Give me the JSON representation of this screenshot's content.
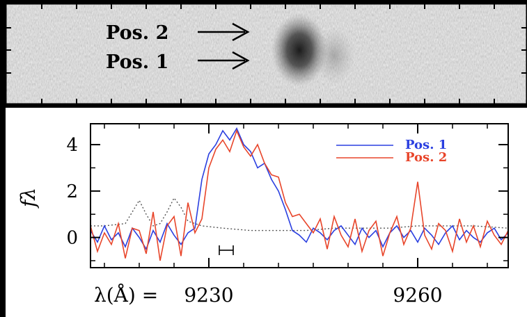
{
  "image_panel": {
    "labels": [
      {
        "text": "Pos. 2"
      },
      {
        "text": "Pos. 1"
      }
    ]
  },
  "chart_data": {
    "type": "line",
    "ylabel": "fλ",
    "ylim": [
      -1.3,
      4.9
    ],
    "xlim": [
      9213,
      9273
    ],
    "yticks": [
      "0",
      "2",
      "4"
    ],
    "ytick_values": [
      0,
      2,
      4
    ],
    "xtick_labels_prefix": "λ(Å)  =",
    "xticks": [
      "9230",
      "9260"
    ],
    "xtick_values": [
      9230,
      9260
    ],
    "legend": {
      "placement": "top-right",
      "entries": [
        "Pos. 1",
        "Pos. 2"
      ]
    },
    "colors": {
      "pos1": "#2a3fe0",
      "pos2": "#e8452a",
      "dotted": "#555555"
    },
    "series": [
      {
        "name": "Pos. 1",
        "x": [
          9213,
          9214,
          9215,
          9216,
          9217,
          9218,
          9219,
          9220,
          9221,
          9222,
          9223,
          9224,
          9225,
          9226,
          9227,
          9228,
          9229,
          9230,
          9231,
          9232,
          9233,
          9234,
          9235,
          9236,
          9237,
          9238,
          9239,
          9240,
          9241,
          9242,
          9243,
          9244,
          9245,
          9246,
          9247,
          9248,
          9249,
          9250,
          9251,
          9252,
          9253,
          9254,
          9255,
          9256,
          9257,
          9258,
          9259,
          9260,
          9261,
          9262,
          9263,
          9264,
          9265,
          9266,
          9267,
          9268,
          9269,
          9270,
          9271,
          9272,
          9273
        ],
        "values": [
          0.3,
          -0.2,
          0.5,
          -0.1,
          0.2,
          -0.4,
          0.4,
          0.0,
          -0.5,
          0.3,
          -0.2,
          0.6,
          0.1,
          -0.3,
          0.2,
          0.4,
          2.5,
          3.6,
          4.0,
          4.6,
          4.2,
          4.7,
          4.0,
          3.7,
          3.0,
          3.2,
          2.5,
          2.0,
          1.2,
          0.3,
          0.1,
          -0.2,
          0.4,
          0.2,
          -0.1,
          0.3,
          0.5,
          0.1,
          -0.3,
          0.4,
          0.0,
          0.3,
          -0.4,
          0.2,
          0.5,
          0.0,
          0.3,
          -0.2,
          0.4,
          0.1,
          -0.3,
          0.2,
          0.5,
          -0.1,
          0.3,
          0.0,
          -0.2,
          0.2,
          0.4,
          -0.1,
          0.2
        ]
      },
      {
        "name": "Pos. 2",
        "x": [
          9213,
          9214,
          9215,
          9216,
          9217,
          9218,
          9219,
          9220,
          9221,
          9222,
          9223,
          9224,
          9225,
          9226,
          9227,
          9228,
          9229,
          9230,
          9231,
          9232,
          9233,
          9234,
          9235,
          9236,
          9237,
          9238,
          9239,
          9240,
          9241,
          9242,
          9243,
          9244,
          9245,
          9246,
          9247,
          9248,
          9249,
          9250,
          9251,
          9252,
          9253,
          9254,
          9255,
          9256,
          9257,
          9258,
          9259,
          9260,
          9261,
          9262,
          9263,
          9264,
          9265,
          9266,
          9267,
          9268,
          9269,
          9270,
          9271,
          9272,
          9273
        ],
        "values": [
          0.5,
          -0.6,
          0.2,
          -0.3,
          0.6,
          -0.9,
          0.4,
          0.3,
          -0.7,
          1.1,
          -1.0,
          0.5,
          0.9,
          -0.8,
          1.5,
          0.2,
          0.8,
          3.0,
          3.8,
          4.2,
          3.7,
          4.6,
          3.9,
          3.5,
          4.0,
          3.2,
          2.7,
          2.6,
          1.5,
          0.9,
          1.0,
          0.6,
          0.2,
          0.8,
          -0.5,
          0.9,
          0.1,
          -0.4,
          0.8,
          -0.6,
          0.3,
          0.7,
          -0.8,
          0.2,
          0.9,
          -0.3,
          0.4,
          2.4,
          0.1,
          -0.5,
          0.6,
          0.3,
          -0.6,
          0.8,
          -0.2,
          0.5,
          -0.4,
          0.7,
          0.1,
          -0.3,
          0.3
        ]
      },
      {
        "name": "",
        "style": "dotted",
        "x": [
          9213,
          9215,
          9218,
          9219,
          9220,
          9221,
          9222,
          9223,
          9224,
          9225,
          9226,
          9227,
          9228,
          9229,
          9232,
          9236,
          9240,
          9244,
          9248,
          9252,
          9256,
          9260,
          9264,
          9268,
          9273
        ],
        "values": [
          0.5,
          0.5,
          0.6,
          1.1,
          1.6,
          1.0,
          0.5,
          0.6,
          1.1,
          1.7,
          1.3,
          0.7,
          0.6,
          0.5,
          0.4,
          0.3,
          0.3,
          0.3,
          0.4,
          0.4,
          0.4,
          0.5,
          0.5,
          0.5,
          0.4
        ]
      }
    ],
    "error_bar": {
      "x": [
        9231.5,
        9233.5
      ],
      "y": -0.55
    }
  }
}
